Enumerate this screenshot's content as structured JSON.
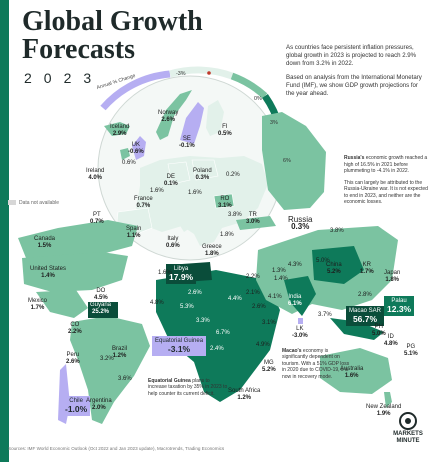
{
  "header": {
    "title_line1": "Global Growth",
    "title_line2": "Forecasts",
    "year": "2023"
  },
  "intro": {
    "p1": "As countries face persistent inflation pressures, global growth in 2023 is projected to reach 2.9% down from 3.2% in 2022.",
    "p2": "Based on analysis from the International Monetary Fund (IMF), we show GDP growth projections for the year ahead."
  },
  "legend": {
    "caption": "Annual % Change",
    "ticks": [
      "-3%",
      "0%",
      "3%",
      "6%"
    ],
    "na_label": "Data not available",
    "colors": {
      "negative": "#b6aef2",
      "low": "#e2f1ea",
      "mid": "#7bc3a1",
      "high": "#0e7a5a",
      "highest": "#0a4d3a",
      "na": "#d7d7d7",
      "accent": "#0e7a5a"
    }
  },
  "russia_note": {
    "lead": "Russia's",
    "p1": "economic growth reached a high of 16.5% in 2021 before plummeting to -4.1% in 2022.",
    "p2": "This can largely be attributed to the Russia-Ukraine war. It is not expected to end in 2023, and neither are the economic losses."
  },
  "countries": {
    "iceland": {
      "name": "Iceland",
      "value": "2.9%"
    },
    "norway": {
      "name": "Norway",
      "value": "2.6%"
    },
    "se": {
      "name": "SE",
      "value": "-0.1%"
    },
    "fi": {
      "name": "FI",
      "value": "0.5%"
    },
    "uk": {
      "name": "UK",
      "value": "-0.6%"
    },
    "ireland": {
      "name": "Ireland",
      "value": "4.0%"
    },
    "de": {
      "name": "DE",
      "value": "0.1%"
    },
    "poland": {
      "name": "Poland",
      "value": "0.3%"
    },
    "france": {
      "name": "France",
      "value": "0.7%"
    },
    "ro": {
      "name": "RO",
      "value": "3.1%"
    },
    "pt": {
      "name": "PT",
      "value": "0.7%"
    },
    "spain": {
      "name": "Spain",
      "value": "1.1%"
    },
    "italy": {
      "name": "Italy",
      "value": "0.6%"
    },
    "tr": {
      "name": "TR",
      "value": "3.0%"
    },
    "greece": {
      "name": "Greece",
      "value": "1.8%"
    },
    "russia": {
      "name": "Russia",
      "value": "0.3%"
    },
    "canada": {
      "name": "Canada",
      "value": "1.5%"
    },
    "usa": {
      "name": "United States",
      "value": "1.4%"
    },
    "mexico": {
      "name": "Mexico",
      "value": "1.7%"
    },
    "do": {
      "name": "DO",
      "value": "4.5%"
    },
    "guyana": {
      "name": "Guyana",
      "value": "25.2%"
    },
    "co": {
      "name": "CO",
      "value": "2.2%"
    },
    "peru": {
      "name": "Peru",
      "value": "2.6%"
    },
    "brazil": {
      "name": "Brazil",
      "value": "1.2%"
    },
    "chile": {
      "name": "Chile",
      "value": "-1.0%"
    },
    "argentina": {
      "name": "Argentina",
      "value": "2.0%"
    },
    "libya": {
      "name": "Libya",
      "value": "17.9%"
    },
    "eq_guinea": {
      "name": "Equatorial Guinea",
      "value": "-3.1%"
    },
    "south_africa": {
      "name": "South Africa",
      "value": "1.2%"
    },
    "mg": {
      "name": "MG",
      "value": "5.2%"
    },
    "china": {
      "name": "China",
      "value": "5.2%"
    },
    "kr": {
      "name": "KR",
      "value": "1.7%"
    },
    "japan": {
      "name": "Japan",
      "value": "1.8%"
    },
    "india": {
      "name": "India",
      "value": "6.1%"
    },
    "lk": {
      "name": "LK",
      "value": "-3.0%"
    },
    "macao": {
      "name": "Macao SAR",
      "value": "56.7%"
    },
    "palau": {
      "name": "Palau",
      "value": "12.3%"
    },
    "ph": {
      "name": "PH",
      "value": "5.0%"
    },
    "id": {
      "name": "ID",
      "value": "4.8%"
    },
    "pg": {
      "name": "PG",
      "value": "5.1%"
    },
    "australia": {
      "name": "Australia",
      "value": "1.6%"
    },
    "new_zealand": {
      "name": "New Zealand",
      "value": "1.9%"
    }
  },
  "extra_values": [
    "0.6%",
    "1.6%",
    "0.2%",
    "1.6%",
    "3.8%",
    "1.8%",
    "1.6%",
    "2.6%",
    "4.4%",
    "2.1%",
    "4.1%",
    "4.3%",
    "3.1%",
    "2.4%",
    "6.7%",
    "4.9%",
    "5.0%",
    "3.7%",
    "2.8%",
    "1.4%",
    "2.6%",
    "3.6%",
    "5.3%",
    "3.2%",
    "4.8%",
    "3.3%",
    "1.3%",
    "2.2%",
    "3.8%"
  ],
  "callouts": {
    "eq_guinea": {
      "lead": "Equatorial Guinea",
      "text": "plans to increase taxation by 35% in 2023 to help counter its current deficit."
    },
    "macao": {
      "lead": "Macao's",
      "text": "economy is significantly dependent on tourism. With a 51% GDP loss in 2020 due to COVID-19, it is now in recovery mode."
    }
  },
  "footer": {
    "sources": "Sources: IMF World Economic Outlook (Oct 2022 and Jan 2023 update), Macrotrends, Trading Economics",
    "logo_line1": "MARKETS",
    "logo_line2": "MINUTE"
  }
}
